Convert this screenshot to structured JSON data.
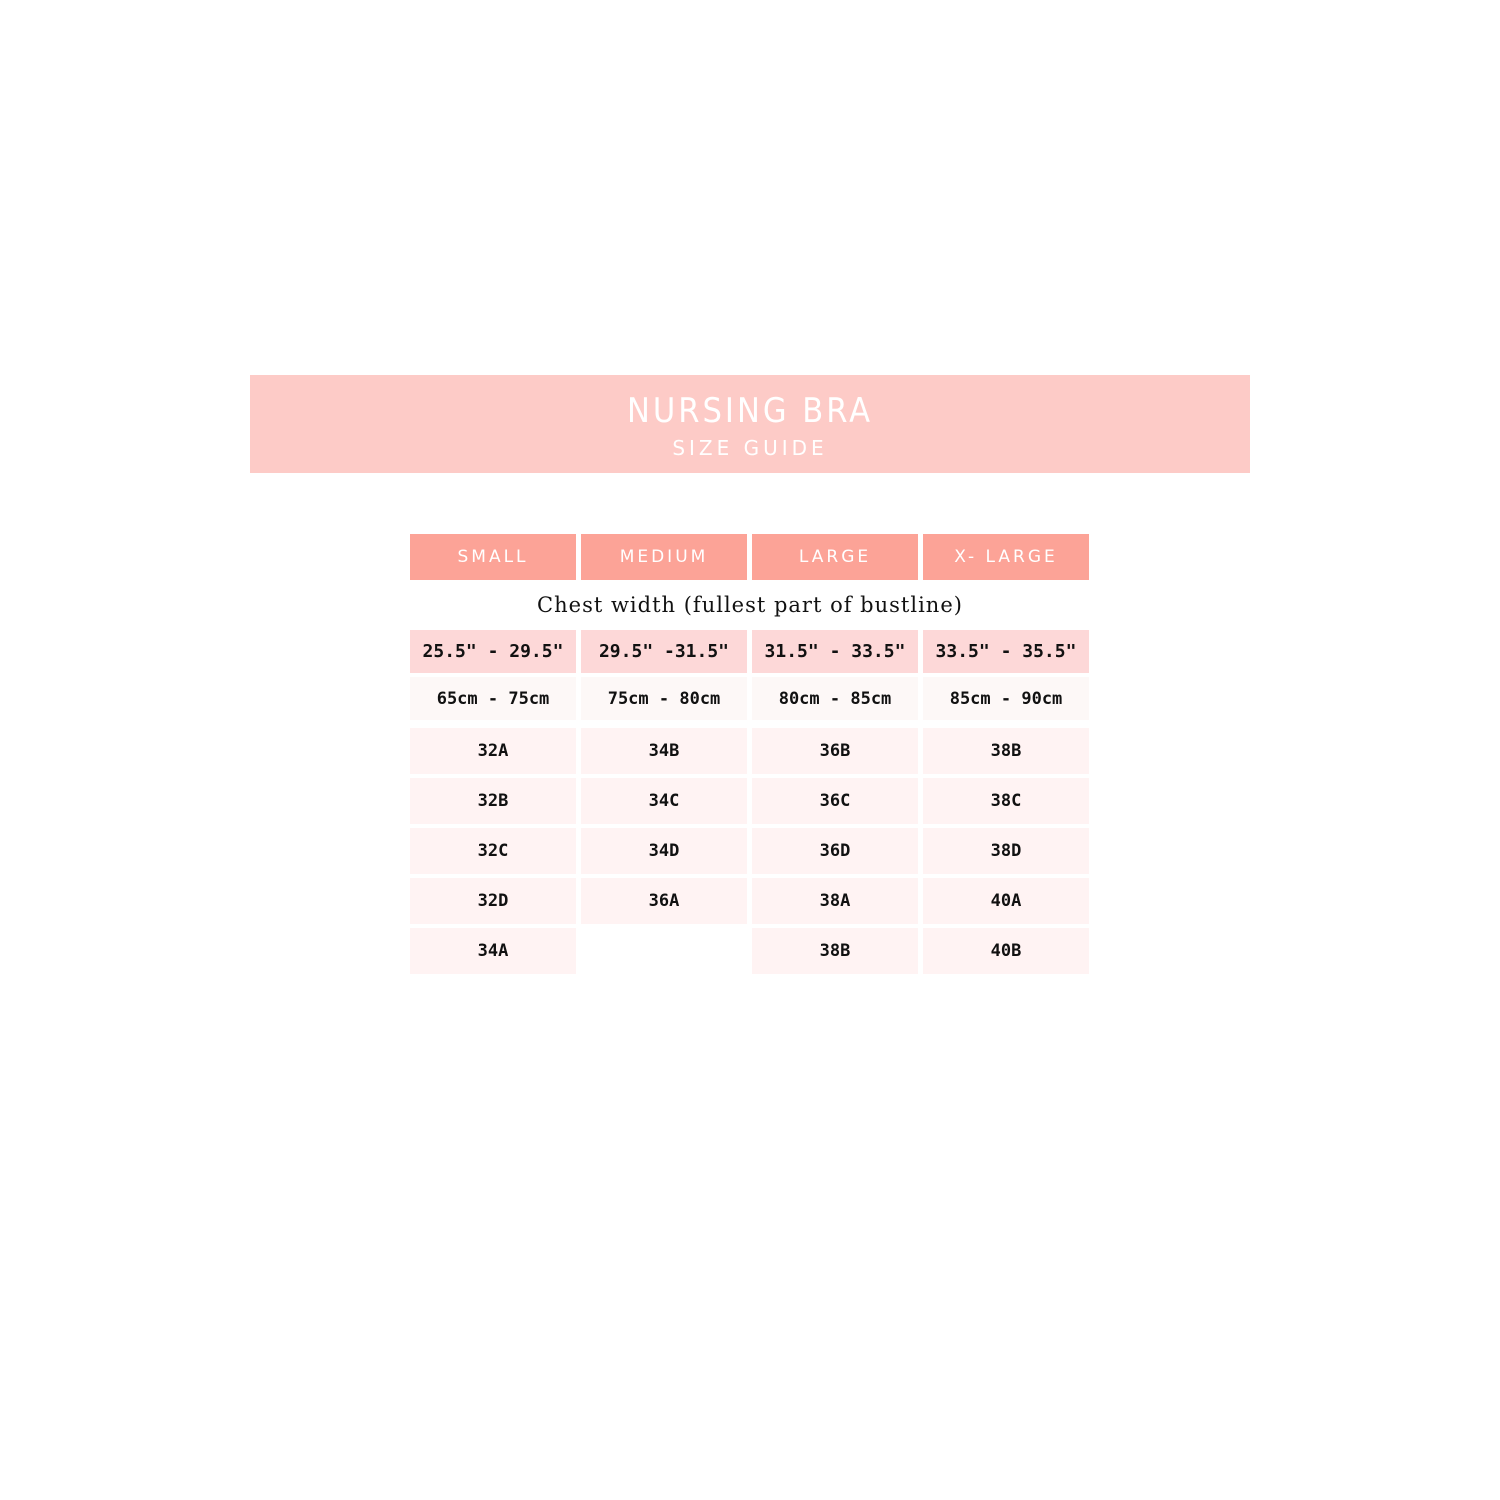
{
  "banner": {
    "title": "NURSING BRA",
    "subtitle": "SIZE GUIDE"
  },
  "colors": {
    "banner": "#fdcbc7",
    "header": "#fca397",
    "inch_row": "#fdd8d8",
    "cm_row": "#fdf8f7",
    "size_cell": "#fff3f3"
  },
  "table": {
    "columns": [
      "SMALL",
      "MEDIUM",
      "LARGE",
      "X- LARGE"
    ],
    "note": "Chest width (fullest part of bustline)",
    "inches": [
      "25.5\" - 29.5\"",
      "29.5\" -31.5\"",
      "31.5\" - 33.5\"",
      "33.5\" - 35.5\""
    ],
    "cm": [
      "65cm - 75cm",
      "75cm - 80cm",
      "80cm - 85cm",
      "85cm - 90cm"
    ],
    "sizes": [
      [
        "32A",
        "34B",
        "36B",
        "38B"
      ],
      [
        "32B",
        "34C",
        "36C",
        "38C"
      ],
      [
        "32C",
        "34D",
        "36D",
        "38D"
      ],
      [
        "32D",
        "36A",
        "38A",
        "40A"
      ],
      [
        "34A",
        "",
        "38B",
        "40B"
      ]
    ]
  }
}
